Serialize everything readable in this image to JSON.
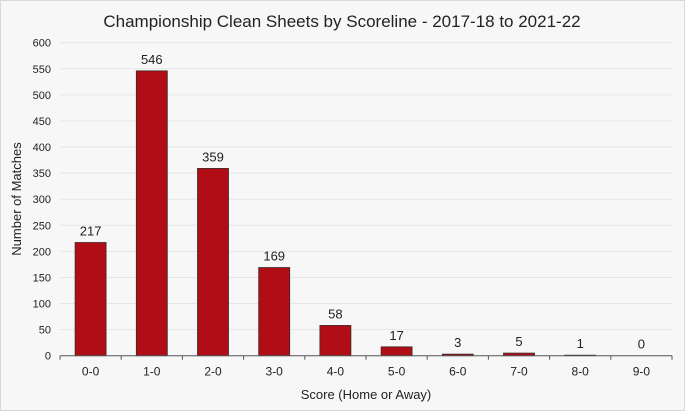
{
  "chart_data": {
    "type": "bar",
    "title": "Championship Clean Sheets by Scoreline - 2017-18 to 2021-22",
    "xlabel": "Score (Home or Away)",
    "ylabel": "Number of Matches",
    "categories": [
      "0-0",
      "1-0",
      "2-0",
      "3-0",
      "4-0",
      "5-0",
      "6-0",
      "7-0",
      "8-0",
      "9-0"
    ],
    "values": [
      217,
      546,
      359,
      169,
      58,
      17,
      3,
      5,
      1,
      0
    ],
    "ylim": [
      0,
      600
    ],
    "yticks": [
      0,
      50,
      100,
      150,
      200,
      250,
      300,
      350,
      400,
      450,
      500,
      550,
      600
    ],
    "grid": true,
    "data_labels": true,
    "bar_color": "#b00d17",
    "bar_border_color": "#3a2a2a",
    "background_color": "#f7f7f7"
  }
}
